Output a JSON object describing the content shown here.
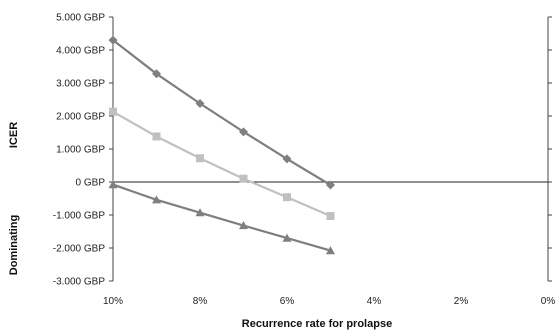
{
  "chart_data": {
    "type": "line",
    "xlabel": "Recurrence rate for prolapse",
    "ylabel": "ICER",
    "ylabel_lower": "Dominating",
    "x_tick_labels": [
      "10%",
      "8%",
      "6%",
      "4%",
      "2%",
      "0%"
    ],
    "x_ticks": [
      10,
      8,
      6,
      4,
      2,
      0
    ],
    "y_tick_labels": [
      "5.000 GBP",
      "4.000 GBP",
      "3.000 GBP",
      "2.000 GBP",
      "1.000 GBP",
      "0 GBP",
      "-1.000 GBP",
      "-2.000 GBP",
      "-3.000 GBP"
    ],
    "y_ticks": [
      5000,
      4000,
      3000,
      2000,
      1000,
      0,
      -1000,
      -2000,
      -3000
    ],
    "xlim": [
      10,
      0
    ],
    "ylim": [
      -3000,
      5000
    ],
    "x": [
      10,
      9,
      8,
      7,
      6,
      5
    ],
    "series": [
      {
        "marker": "diamond",
        "color": "#7f7f7f",
        "values": [
          4300,
          3280,
          2380,
          1520,
          700,
          -90
        ]
      },
      {
        "marker": "square",
        "color": "#c0c0c0",
        "values": [
          2130,
          1380,
          720,
          100,
          -460,
          -1030
        ]
      },
      {
        "marker": "triangle",
        "color": "#7f7f7f",
        "values": [
          -80,
          -540,
          -930,
          -1320,
          -1700,
          -2080
        ]
      }
    ],
    "grid": false,
    "legend": "none"
  }
}
